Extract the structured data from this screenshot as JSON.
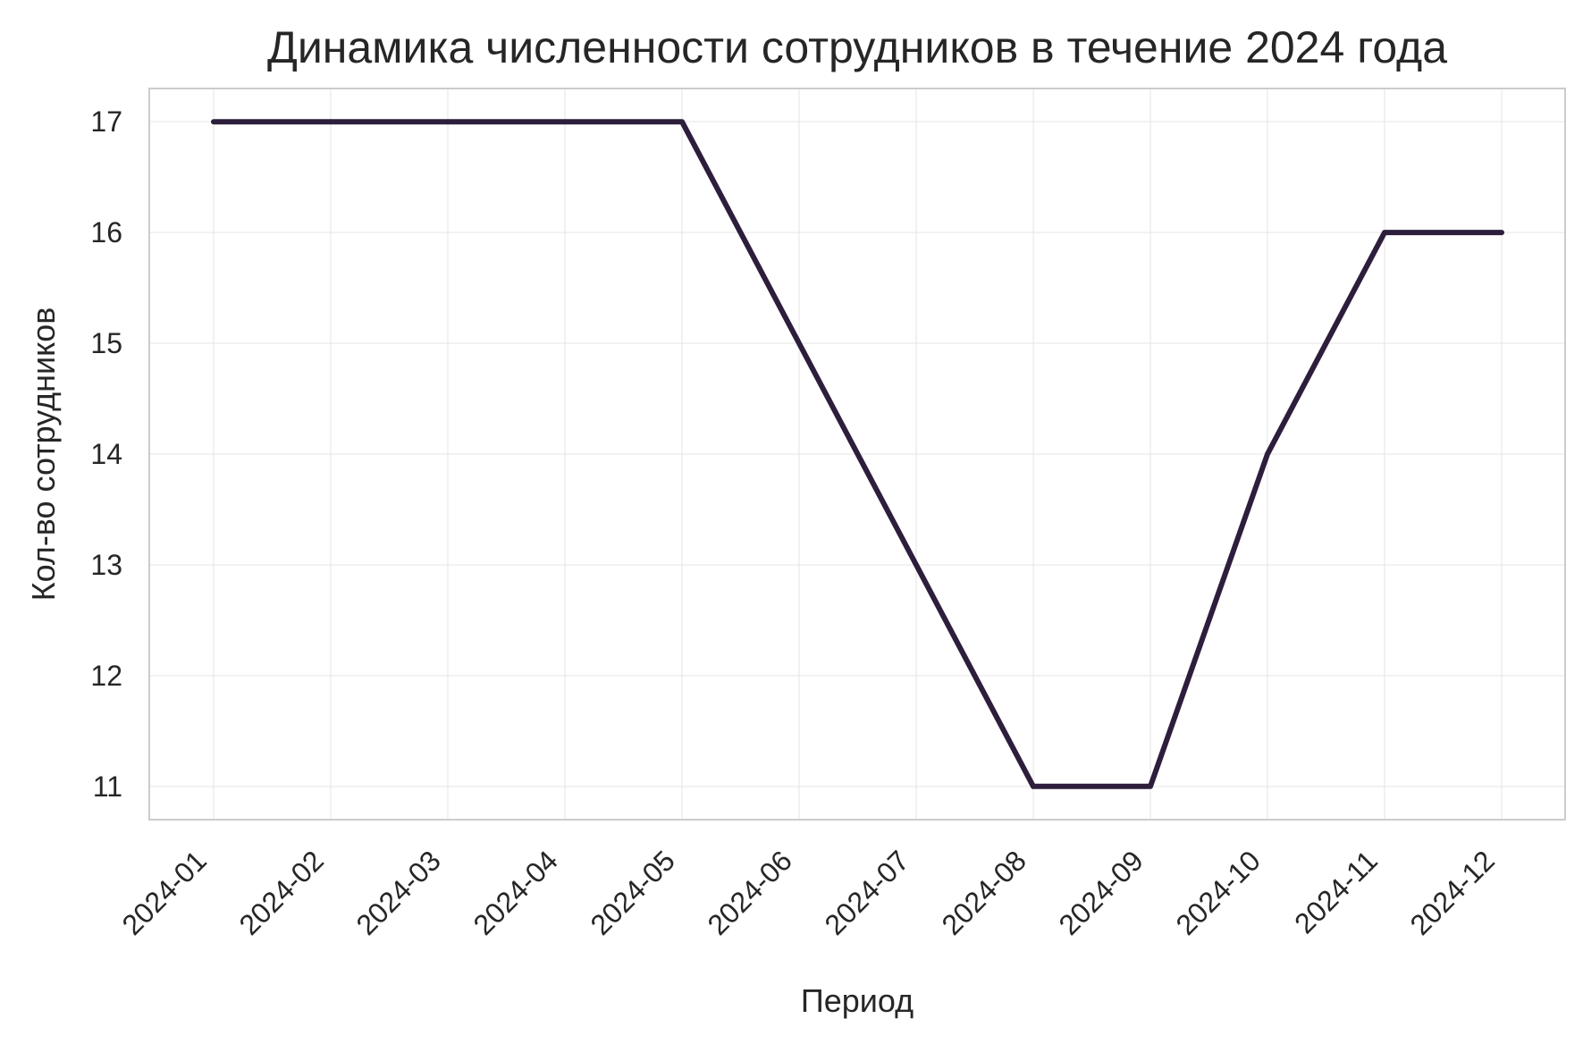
{
  "chart_data": {
    "type": "line",
    "title": "Динамика численности сотрудников в течение 2024 года",
    "xlabel": "Период",
    "ylabel": "Кол-во сотрудников",
    "x": [
      "2024-01",
      "2024-02",
      "2024-03",
      "2024-04",
      "2024-05",
      "2024-06",
      "2024-07",
      "2024-08",
      "2024-09",
      "2024-10",
      "2024-11",
      "2024-12"
    ],
    "series": [
      {
        "values": [
          17,
          17,
          17,
          17,
          17,
          15,
          13,
          11,
          11,
          14,
          16,
          16
        ],
        "color": "#2d1e3c"
      }
    ],
    "yticks": [
      11,
      12,
      13,
      14,
      15,
      16,
      17
    ],
    "ylim": [
      10.7,
      17.3
    ],
    "grid": true,
    "legend": "none"
  }
}
